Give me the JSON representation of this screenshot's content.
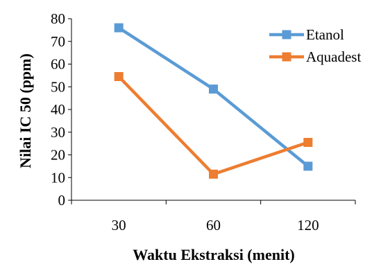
{
  "chart_data": {
    "type": "line",
    "categories": [
      "30",
      "60",
      "120"
    ],
    "series": [
      {
        "name": "Etanol",
        "values": [
          76,
          49,
          15
        ],
        "color": "#5B9BD5"
      },
      {
        "name": "Aquadest",
        "values": [
          54.5,
          11.5,
          25.5
        ],
        "color": "#ED7D31"
      }
    ],
    "xlabel": "Waktu Ekstraksi (menit)",
    "ylabel": "Nilai IC 50  (ppm)",
    "ylim": [
      0,
      80
    ],
    "yticks": [
      0,
      10,
      20,
      30,
      40,
      50,
      60,
      70,
      80
    ],
    "grid": false,
    "legend": "top-right"
  }
}
